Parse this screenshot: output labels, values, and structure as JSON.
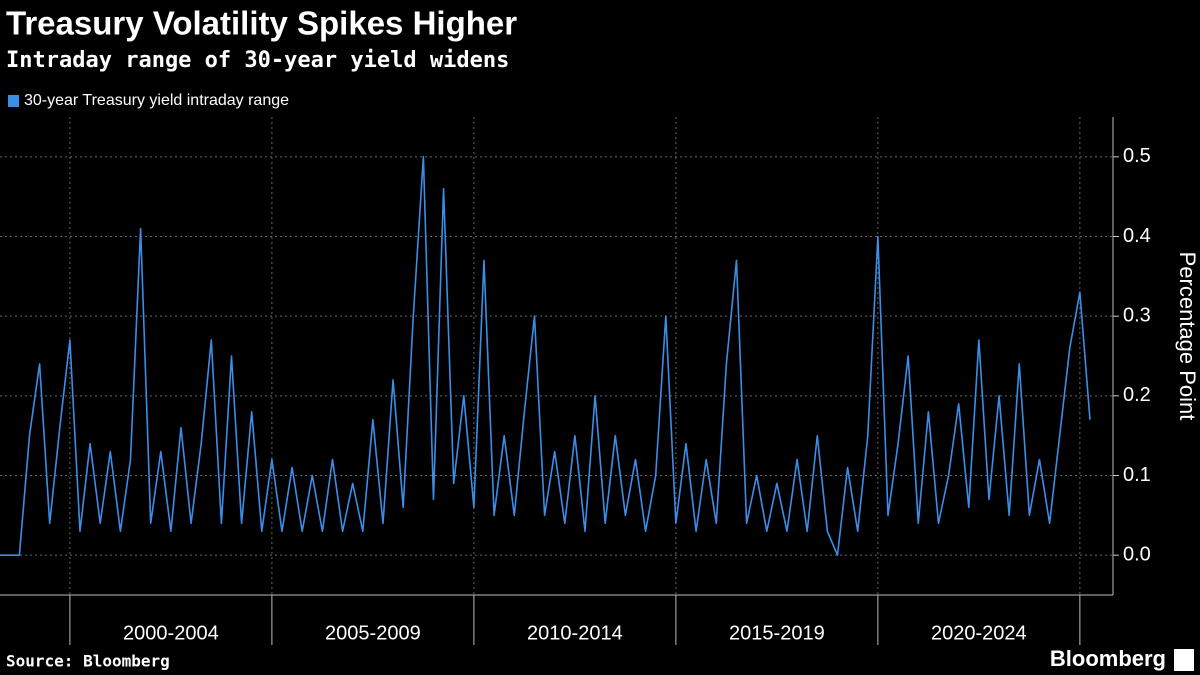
{
  "chart_data": {
    "type": "line",
    "title": "Treasury Volatility Spikes Higher",
    "subtitle": "Intraday range of 30-year yield widens",
    "y_label": "Percentage Point",
    "source": "Source: Bloomberg",
    "brand": "Bloomberg",
    "x": [
      1998.25,
      1998.75,
      1999,
      1999.25,
      1999.5,
      1999.75,
      2000,
      2000.25,
      2000.5,
      2000.75,
      2001,
      2001.25,
      2001.5,
      2001.75,
      2002,
      2002.25,
      2002.5,
      2002.75,
      2003,
      2003.25,
      2003.5,
      2003.75,
      2004,
      2004.25,
      2004.5,
      2004.75,
      2005,
      2005.25,
      2005.5,
      2005.75,
      2006,
      2006.25,
      2006.5,
      2006.75,
      2007,
      2007.25,
      2007.5,
      2007.75,
      2008,
      2008.25,
      2008.5,
      2008.75,
      2009,
      2009.25,
      2009.5,
      2009.75,
      2010,
      2010.25,
      2010.5,
      2010.75,
      2011,
      2011.25,
      2011.5,
      2011.75,
      2012,
      2012.25,
      2012.5,
      2012.75,
      2013,
      2013.25,
      2013.5,
      2013.75,
      2014,
      2014.25,
      2014.5,
      2014.75,
      2015,
      2015.25,
      2015.5,
      2015.75,
      2016,
      2016.25,
      2016.5,
      2016.75,
      2017,
      2017.25,
      2017.5,
      2017.75,
      2018,
      2018.25,
      2018.5,
      2018.75,
      2019,
      2019.25,
      2019.5,
      2019.75,
      2020,
      2020.25,
      2020.5,
      2020.75,
      2021,
      2021.25,
      2021.5,
      2021.75,
      2022,
      2022.25,
      2022.5,
      2022.75,
      2023,
      2023.25,
      2023.5,
      2023.75,
      2024,
      2024.25,
      2024.5,
      2024.75,
      2025,
      2025.25
    ],
    "series": [
      {
        "name": "30-year Treasury yield intraday range",
        "color": "#3b8ee8",
        "values": [
          0,
          0,
          0.15,
          0.24,
          0.04,
          0.16,
          0.27,
          0.03,
          0.14,
          0.04,
          0.13,
          0.03,
          0.12,
          0.41,
          0.04,
          0.13,
          0.03,
          0.16,
          0.04,
          0.14,
          0.27,
          0.04,
          0.25,
          0.04,
          0.18,
          0.03,
          0.12,
          0.03,
          0.11,
          0.03,
          0.1,
          0.03,
          0.12,
          0.03,
          0.09,
          0.03,
          0.17,
          0.04,
          0.22,
          0.06,
          0.3,
          0.5,
          0.07,
          0.46,
          0.09,
          0.2,
          0.06,
          0.37,
          0.05,
          0.15,
          0.05,
          0.18,
          0.3,
          0.05,
          0.13,
          0.04,
          0.15,
          0.03,
          0.2,
          0.04,
          0.15,
          0.05,
          0.12,
          0.03,
          0.1,
          0.3,
          0.04,
          0.14,
          0.03,
          0.12,
          0.04,
          0.24,
          0.37,
          0.04,
          0.1,
          0.03,
          0.09,
          0.03,
          0.12,
          0.03,
          0.15,
          0.03,
          0.0,
          0.11,
          0.03,
          0.15,
          0.4,
          0.05,
          0.14,
          0.25,
          0.04,
          0.18,
          0.04,
          0.1,
          0.19,
          0.06,
          0.27,
          0.07,
          0.2,
          0.05,
          0.24,
          0.05,
          0.12,
          0.04,
          0.15,
          0.26,
          0.33,
          0.17
        ]
      }
    ],
    "xlim": [
      1998.27,
      2025.82
    ],
    "xgrid": [
      2000,
      2005,
      2010,
      2015,
      2020,
      2025
    ],
    "xticks": [
      {
        "value": 2002.5,
        "label": "2000-2004"
      },
      {
        "value": 2007.5,
        "label": "2005-2009"
      },
      {
        "value": 2012.5,
        "label": "2010-2014"
      },
      {
        "value": 2017.5,
        "label": "2015-2019"
      },
      {
        "value": 2022.5,
        "label": "2020-2024"
      }
    ],
    "ylim": [
      -0.05,
      0.55
    ],
    "yticks": [
      {
        "value": 0,
        "label": "0.0"
      },
      0.1,
      0.2,
      0.3,
      0.4,
      0.5
    ],
    "grid": true,
    "legend": "top-left"
  }
}
